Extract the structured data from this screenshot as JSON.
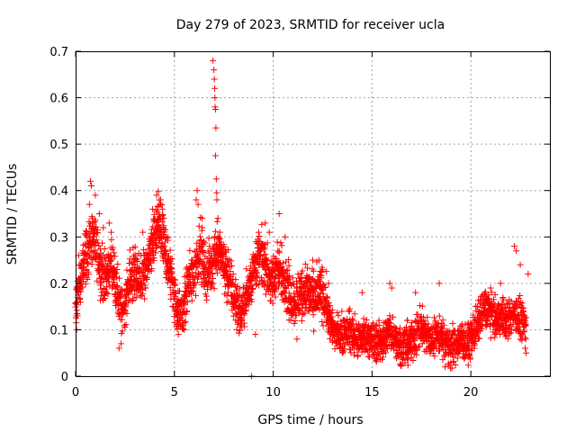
{
  "chart_data": {
    "type": "scatter",
    "title": "Day 279 of 2023, SRMTID for receiver ucla",
    "xlabel": "GPS time / hours",
    "ylabel": "SRMTID / TECUs",
    "xlim": [
      0,
      24
    ],
    "ylim": [
      0,
      0.7
    ],
    "xticks": [
      "0",
      "5",
      "10",
      "15",
      "20"
    ],
    "yticks": [
      "0",
      "0.1",
      "0.2",
      "0.3",
      "0.4",
      "0.5",
      "0.6",
      "0.7"
    ],
    "grid": true,
    "marker": "+",
    "color": "#ff0000",
    "series": [
      {
        "name": "SRMTID",
        "trend": [
          [
            0.0,
            0.14
          ],
          [
            0.3,
            0.22
          ],
          [
            0.6,
            0.27
          ],
          [
            0.9,
            0.3
          ],
          [
            1.2,
            0.25
          ],
          [
            1.5,
            0.2
          ],
          [
            1.8,
            0.25
          ],
          [
            2.1,
            0.18
          ],
          [
            2.4,
            0.14
          ],
          [
            2.7,
            0.2
          ],
          [
            3.0,
            0.22
          ],
          [
            3.3,
            0.2
          ],
          [
            3.6,
            0.24
          ],
          [
            3.9,
            0.28
          ],
          [
            4.2,
            0.33
          ],
          [
            4.5,
            0.28
          ],
          [
            4.8,
            0.22
          ],
          [
            5.1,
            0.15
          ],
          [
            5.4,
            0.13
          ],
          [
            5.7,
            0.2
          ],
          [
            6.0,
            0.22
          ],
          [
            6.3,
            0.28
          ],
          [
            6.6,
            0.22
          ],
          [
            6.9,
            0.24
          ],
          [
            7.2,
            0.28
          ],
          [
            7.5,
            0.24
          ],
          [
            7.8,
            0.2
          ],
          [
            8.1,
            0.16
          ],
          [
            8.4,
            0.13
          ],
          [
            8.7,
            0.18
          ],
          [
            9.0,
            0.23
          ],
          [
            9.3,
            0.26
          ],
          [
            9.6,
            0.24
          ],
          [
            9.9,
            0.2
          ],
          [
            10.2,
            0.23
          ],
          [
            10.5,
            0.22
          ],
          [
            10.8,
            0.18
          ],
          [
            11.1,
            0.16
          ],
          [
            11.4,
            0.18
          ],
          [
            11.7,
            0.19
          ],
          [
            12.0,
            0.17
          ],
          [
            12.3,
            0.18
          ],
          [
            12.6,
            0.17
          ],
          [
            12.9,
            0.11
          ],
          [
            13.2,
            0.09
          ],
          [
            13.5,
            0.09
          ],
          [
            13.8,
            0.1
          ],
          [
            14.1,
            0.08
          ],
          [
            14.4,
            0.08
          ],
          [
            14.7,
            0.09
          ],
          [
            15.0,
            0.08
          ],
          [
            15.3,
            0.07
          ],
          [
            15.6,
            0.08
          ],
          [
            15.9,
            0.1
          ],
          [
            16.2,
            0.08
          ],
          [
            16.5,
            0.06
          ],
          [
            16.8,
            0.07
          ],
          [
            17.1,
            0.08
          ],
          [
            17.4,
            0.1
          ],
          [
            17.7,
            0.09
          ],
          [
            18.0,
            0.08
          ],
          [
            18.3,
            0.09
          ],
          [
            18.6,
            0.08
          ],
          [
            18.9,
            0.06
          ],
          [
            19.2,
            0.07
          ],
          [
            19.5,
            0.08
          ],
          [
            19.8,
            0.07
          ],
          [
            20.1,
            0.09
          ],
          [
            20.4,
            0.12
          ],
          [
            20.7,
            0.15
          ],
          [
            21.0,
            0.14
          ],
          [
            21.3,
            0.12
          ],
          [
            21.6,
            0.13
          ],
          [
            21.9,
            0.12
          ],
          [
            22.2,
            0.14
          ],
          [
            22.5,
            0.12
          ],
          [
            22.8,
            0.1
          ]
        ],
        "spread": 0.045,
        "points": [
          [
            0.05,
            0.1
          ],
          [
            0.1,
            0.13
          ],
          [
            0.15,
            0.26
          ],
          [
            0.4,
            0.25
          ],
          [
            0.7,
            0.37
          ],
          [
            0.75,
            0.42
          ],
          [
            0.8,
            0.41
          ],
          [
            1.0,
            0.39
          ],
          [
            1.2,
            0.35
          ],
          [
            1.4,
            0.32
          ],
          [
            1.7,
            0.33
          ],
          [
            1.8,
            0.31
          ],
          [
            2.3,
            0.07
          ],
          [
            2.2,
            0.06
          ],
          [
            3.4,
            0.31
          ],
          [
            3.9,
            0.36
          ],
          [
            4.1,
            0.39
          ],
          [
            4.3,
            0.38
          ],
          [
            4.4,
            0.36
          ],
          [
            4.6,
            0.3
          ],
          [
            5.2,
            0.09
          ],
          [
            5.5,
            0.1
          ],
          [
            6.1,
            0.38
          ],
          [
            6.15,
            0.4
          ],
          [
            6.2,
            0.37
          ],
          [
            6.4,
            0.34
          ],
          [
            6.95,
            0.68
          ],
          [
            7.0,
            0.66
          ],
          [
            7.02,
            0.64
          ],
          [
            7.04,
            0.62
          ],
          [
            7.05,
            0.6
          ],
          [
            7.06,
            0.58
          ],
          [
            7.08,
            0.575
          ],
          [
            7.1,
            0.535
          ],
          [
            7.08,
            0.475
          ],
          [
            7.12,
            0.425
          ],
          [
            7.14,
            0.395
          ],
          [
            7.15,
            0.38
          ],
          [
            7.2,
            0.34
          ],
          [
            7.3,
            0.31
          ],
          [
            8.9,
            0.0
          ],
          [
            9.1,
            0.09
          ],
          [
            9.6,
            0.33
          ],
          [
            9.8,
            0.31
          ],
          [
            10.3,
            0.35
          ],
          [
            10.6,
            0.3
          ],
          [
            11.2,
            0.08
          ],
          [
            12.0,
            0.25
          ],
          [
            12.8,
            0.2
          ],
          [
            13.5,
            0.05
          ],
          [
            14.5,
            0.18
          ],
          [
            15.9,
            0.2
          ],
          [
            16.0,
            0.19
          ],
          [
            16.6,
            0.04
          ],
          [
            17.2,
            0.18
          ],
          [
            18.4,
            0.2
          ],
          [
            18.7,
            0.02
          ],
          [
            19.1,
            0.03
          ],
          [
            21.0,
            0.19
          ],
          [
            21.5,
            0.2
          ],
          [
            22.2,
            0.28
          ],
          [
            22.3,
            0.27
          ],
          [
            22.5,
            0.24
          ],
          [
            22.9,
            0.22
          ],
          [
            22.75,
            0.06
          ],
          [
            22.8,
            0.05
          ]
        ]
      }
    ]
  }
}
